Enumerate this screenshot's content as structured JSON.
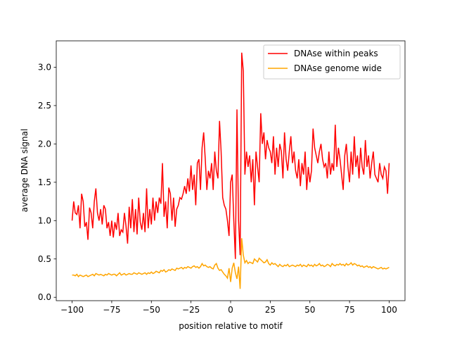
{
  "chart_data": {
    "type": "line",
    "xlabel": "position relative to motif",
    "ylabel": "average DNA signal",
    "x": [
      -100,
      -99,
      -98,
      -97,
      -96,
      -95,
      -94,
      -93,
      -92,
      -91,
      -90,
      -89,
      -88,
      -87,
      -86,
      -85,
      -84,
      -83,
      -82,
      -81,
      -80,
      -79,
      -78,
      -77,
      -76,
      -75,
      -74,
      -73,
      -72,
      -71,
      -70,
      -69,
      -68,
      -67,
      -66,
      -65,
      -64,
      -63,
      -62,
      -61,
      -60,
      -59,
      -58,
      -57,
      -56,
      -55,
      -54,
      -53,
      -52,
      -51,
      -50,
      -49,
      -48,
      -47,
      -46,
      -45,
      -44,
      -43,
      -42,
      -41,
      -40,
      -39,
      -38,
      -37,
      -36,
      -35,
      -34,
      -33,
      -32,
      -31,
      -30,
      -29,
      -28,
      -27,
      -26,
      -25,
      -24,
      -23,
      -22,
      -21,
      -20,
      -19,
      -18,
      -17,
      -16,
      -15,
      -14,
      -13,
      -12,
      -11,
      -10,
      -9,
      -8,
      -7,
      -6,
      -5,
      -4,
      -3,
      -2,
      -1,
      0,
      1,
      2,
      3,
      4,
      5,
      6,
      7,
      8,
      9,
      10,
      11,
      12,
      13,
      14,
      15,
      16,
      17,
      18,
      19,
      20,
      21,
      22,
      23,
      24,
      25,
      26,
      27,
      28,
      29,
      30,
      31,
      32,
      33,
      34,
      35,
      36,
      37,
      38,
      39,
      40,
      41,
      42,
      43,
      44,
      45,
      46,
      47,
      48,
      49,
      50,
      51,
      52,
      53,
      54,
      55,
      56,
      57,
      58,
      59,
      60,
      61,
      62,
      63,
      64,
      65,
      66,
      67,
      68,
      69,
      70,
      71,
      72,
      73,
      74,
      75,
      76,
      77,
      78,
      79,
      80,
      81,
      82,
      83,
      84,
      85,
      86,
      87,
      88,
      89,
      90,
      91,
      92,
      93,
      94,
      95,
      96,
      97,
      98,
      99,
      100
    ],
    "series": [
      {
        "name": "DNAse within peaks",
        "color": "#ff0000",
        "values": [
          1.0,
          1.25,
          1.1,
          1.08,
          1.2,
          0.9,
          1.35,
          1.25,
          0.92,
          0.98,
          0.75,
          1.17,
          1.1,
          0.9,
          1.25,
          1.42,
          1.1,
          1.0,
          1.15,
          0.95,
          1.2,
          1.15,
          0.9,
          0.98,
          0.8,
          1.0,
          0.78,
          0.98,
          0.88,
          1.1,
          0.8,
          0.88,
          0.85,
          1.1,
          0.93,
          0.7,
          1.18,
          0.9,
          1.28,
          0.85,
          1.15,
          0.82,
          1.3,
          0.98,
          0.88,
          1.1,
          0.85,
          1.42,
          0.9,
          1.15,
          0.95,
          1.3,
          1.0,
          1.25,
          1.1,
          1.3,
          1.22,
          1.75,
          1.05,
          1.25,
          0.9,
          1.43,
          1.35,
          1.0,
          1.3,
          0.92,
          1.15,
          1.2,
          1.3,
          1.28,
          1.35,
          1.45,
          1.35,
          1.55,
          1.38,
          1.72,
          1.4,
          1.6,
          1.2,
          1.75,
          1.8,
          1.4,
          1.95,
          2.15,
          1.8,
          1.4,
          1.65,
          1.55,
          1.75,
          1.4,
          1.9,
          1.65,
          1.55,
          2.3,
          1.9,
          1.3,
          1.2,
          1.15,
          1.0,
          0.8,
          1.5,
          1.6,
          1.0,
          0.5,
          2.45,
          1.0,
          0.55,
          3.19,
          2.95,
          1.6,
          1.9,
          1.7,
          1.85,
          1.5,
          1.8,
          1.2,
          1.9,
          1.7,
          1.5,
          2.4,
          2.0,
          2.15,
          1.8,
          2.05,
          1.95,
          1.9,
          1.75,
          2.1,
          1.6,
          1.95,
          1.7,
          2.0,
          1.9,
          1.55,
          2.15,
          1.8,
          1.65,
          1.9,
          2.1,
          1.75,
          1.9,
          1.65,
          1.55,
          1.8,
          1.45,
          1.75,
          1.6,
          1.9,
          1.4,
          1.7,
          1.5,
          1.65,
          2.2,
          1.95,
          1.85,
          1.75,
          1.9,
          2.0,
          1.8,
          1.7,
          1.75,
          1.55,
          1.9,
          1.6,
          1.75,
          1.65,
          2.25,
          1.7,
          1.95,
          1.8,
          1.6,
          1.4,
          1.85,
          2.0,
          1.7,
          1.5,
          1.9,
          1.6,
          2.1,
          1.7,
          1.85,
          1.55,
          1.95,
          1.7,
          1.6,
          2.05,
          1.7,
          1.85,
          1.55,
          1.75,
          1.9,
          1.6,
          1.55,
          1.5,
          1.75,
          1.6,
          1.55,
          1.7,
          1.65,
          1.35,
          1.75
        ]
      },
      {
        "name": "DNAse genome wide",
        "color": "#ffa500",
        "values": [
          0.29,
          0.29,
          0.28,
          0.3,
          0.27,
          0.29,
          0.28,
          0.27,
          0.28,
          0.29,
          0.27,
          0.28,
          0.29,
          0.3,
          0.28,
          0.31,
          0.3,
          0.29,
          0.3,
          0.29,
          0.28,
          0.3,
          0.29,
          0.31,
          0.3,
          0.29,
          0.3,
          0.3,
          0.28,
          0.3,
          0.32,
          0.29,
          0.3,
          0.31,
          0.29,
          0.3,
          0.31,
          0.3,
          0.3,
          0.32,
          0.31,
          0.3,
          0.32,
          0.31,
          0.3,
          0.31,
          0.32,
          0.3,
          0.32,
          0.31,
          0.33,
          0.31,
          0.32,
          0.34,
          0.33,
          0.32,
          0.35,
          0.34,
          0.36,
          0.33,
          0.34,
          0.36,
          0.35,
          0.37,
          0.36,
          0.35,
          0.38,
          0.37,
          0.38,
          0.39,
          0.37,
          0.39,
          0.38,
          0.4,
          0.39,
          0.38,
          0.4,
          0.41,
          0.39,
          0.4,
          0.38,
          0.4,
          0.44,
          0.41,
          0.42,
          0.4,
          0.39,
          0.4,
          0.38,
          0.37,
          0.42,
          0.44,
          0.38,
          0.35,
          0.36,
          0.33,
          0.3,
          0.28,
          0.25,
          0.38,
          0.2,
          0.38,
          0.45,
          0.32,
          0.24,
          0.4,
          0.11,
          0.77,
          0.55,
          0.45,
          0.48,
          0.44,
          0.46,
          0.45,
          0.44,
          0.5,
          0.48,
          0.46,
          0.51,
          0.49,
          0.47,
          0.45,
          0.46,
          0.49,
          0.44,
          0.42,
          0.45,
          0.43,
          0.44,
          0.42,
          0.4,
          0.43,
          0.41,
          0.4,
          0.42,
          0.41,
          0.43,
          0.4,
          0.41,
          0.42,
          0.41,
          0.4,
          0.42,
          0.41,
          0.43,
          0.4,
          0.42,
          0.41,
          0.4,
          0.43,
          0.41,
          0.42,
          0.4,
          0.43,
          0.41,
          0.42,
          0.44,
          0.41,
          0.42,
          0.4,
          0.41,
          0.43,
          0.42,
          0.4,
          0.44,
          0.42,
          0.41,
          0.43,
          0.42,
          0.44,
          0.42,
          0.43,
          0.41,
          0.44,
          0.42,
          0.43,
          0.45,
          0.42,
          0.44,
          0.43,
          0.41,
          0.42,
          0.4,
          0.41,
          0.39,
          0.4,
          0.41,
          0.39,
          0.4,
          0.38,
          0.4,
          0.39,
          0.38,
          0.37,
          0.38,
          0.39,
          0.37,
          0.38,
          0.37,
          0.38,
          0.39
        ]
      }
    ],
    "xlim": [
      -110,
      110
    ],
    "xticks": [
      {
        "value": -100,
        "label": "−100"
      },
      {
        "value": -75,
        "label": "−75"
      },
      {
        "value": -50,
        "label": "−50"
      },
      {
        "value": -25,
        "label": "−25"
      },
      0,
      25,
      50,
      75,
      100
    ],
    "ylim": [
      -0.044,
      3.344
    ],
    "yticks": [
      {
        "value": 0,
        "label": "0.0"
      },
      0.5,
      {
        "value": 1,
        "label": "1.0"
      },
      1.5,
      {
        "value": 2,
        "label": "2.0"
      },
      2.5,
      {
        "value": 3,
        "label": "3.0"
      }
    ],
    "legend": "upper right"
  }
}
